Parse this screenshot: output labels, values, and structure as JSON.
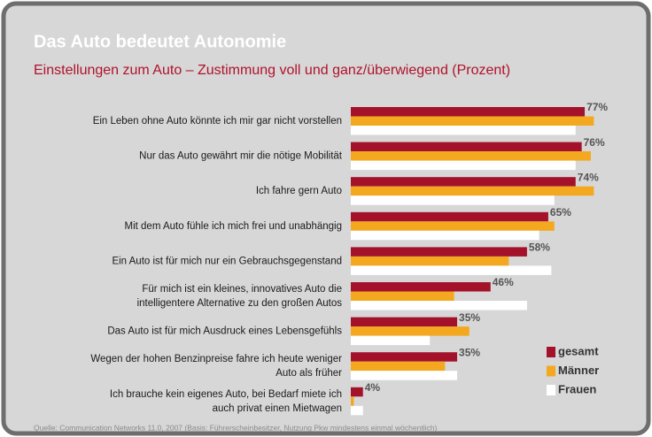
{
  "chart_data": {
    "type": "hbar",
    "title": "Das Auto bedeutet Autonomie",
    "subtitle": "Einstellungen zum Auto – Zustimmung voll und ganz/überwiegend (Prozent)",
    "source": "Quelle: Communication Networks 11.0, 2007 (Basis: Führerscheinbesitzer, Nutzung Pkw mindestens einmal wöchentlich)",
    "categories": [
      "Ein Leben ohne Auto könnte ich mir gar nicht vorstellen",
      "Nur das Auto gewährt mir die nötige Mobilität",
      "Ich fahre gern Auto",
      "Mit dem Auto fühle ich mich frei und unabhängig",
      "Ein Auto ist für mich nur ein Gebrauchsgegenstand",
      "Für mich ist ein kleines, innovatives Auto die\nintelligentere Alternative zu den großen Autos",
      "Das Auto ist für mich Ausdruck eines Lebensgefühls",
      "Wegen der hohen Benzinpreise fahre ich heute weniger\nAuto als früher",
      "Ich brauche kein eigenes Auto, bei Bedarf miete ich\nauch privat einen Mietwagen"
    ],
    "series": [
      {
        "name": "gesamt",
        "color": "#a3122a",
        "values": [
          77,
          76,
          74,
          65,
          58,
          46,
          35,
          35,
          4
        ],
        "value_labels": [
          "77%",
          "76%",
          "74%",
          "65%",
          "58%",
          "46%",
          "35%",
          "35%",
          "4%"
        ]
      },
      {
        "name": "Männer",
        "color": "#f4a81f",
        "values": [
          80,
          79,
          80,
          67,
          52,
          34,
          39,
          31,
          1
        ]
      },
      {
        "name": "Frauen",
        "color": "#ffffff",
        "values": [
          74,
          74,
          67,
          62,
          66,
          58,
          26,
          35,
          4
        ]
      }
    ],
    "xlim": [
      0,
      85
    ],
    "legend": "lower right"
  }
}
